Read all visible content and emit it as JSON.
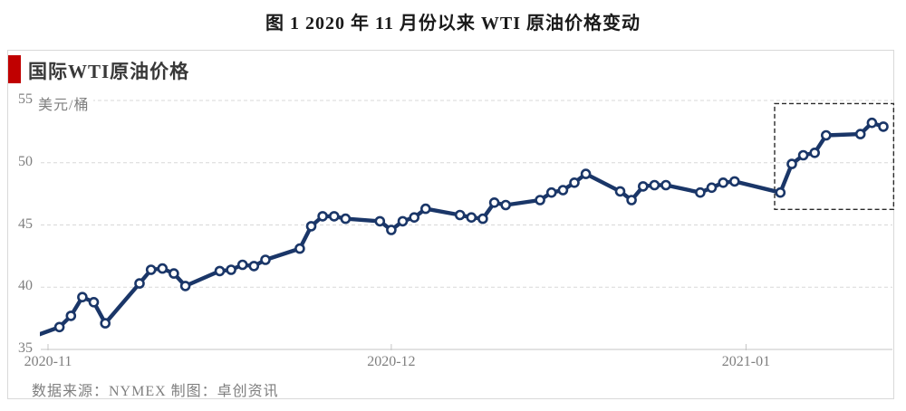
{
  "page_title": "图 1 2020 年 11 月份以来 WTI 原油价格变动",
  "panel": {
    "legend_title": "国际WTI原油价格",
    "accent_color": "#c00000",
    "source_note": "数据来源：NYMEX 制图：卓创资讯"
  },
  "chart_data": {
    "type": "line",
    "title": "国际WTI原油价格",
    "unit_label": "美元/桶",
    "ylim": [
      35,
      55
    ],
    "yticks": [
      35,
      40,
      45,
      50,
      55
    ],
    "grid": "horizontal-dashed",
    "legend_position": "none",
    "line_color": "#1a3668",
    "marker": "open-circle-white-fill",
    "x_axis": {
      "unit": "calendar-day-offset-from-2020-11-01",
      "ticks": [
        {
          "label": "2020-11",
          "day": 0
        },
        {
          "label": "2020-12",
          "day": 30
        },
        {
          "label": "2021-01",
          "day": 61
        }
      ]
    },
    "points": [
      [
        -2,
        35.8
      ],
      [
        1,
        36.8
      ],
      [
        2,
        37.7
      ],
      [
        3,
        39.2
      ],
      [
        4,
        38.8
      ],
      [
        5,
        37.1
      ],
      [
        8,
        40.3
      ],
      [
        9,
        41.4
      ],
      [
        10,
        41.5
      ],
      [
        11,
        41.1
      ],
      [
        12,
        40.1
      ],
      [
        15,
        41.3
      ],
      [
        16,
        41.4
      ],
      [
        17,
        41.8
      ],
      [
        18,
        41.7
      ],
      [
        19,
        42.2
      ],
      [
        22,
        43.1
      ],
      [
        23,
        44.9
      ],
      [
        24,
        45.7
      ],
      [
        25,
        45.7
      ],
      [
        26,
        45.5
      ],
      [
        29,
        45.3
      ],
      [
        30,
        44.6
      ],
      [
        31,
        45.3
      ],
      [
        32,
        45.6
      ],
      [
        33,
        46.3
      ],
      [
        36,
        45.8
      ],
      [
        37,
        45.6
      ],
      [
        38,
        45.5
      ],
      [
        39,
        46.8
      ],
      [
        40,
        46.6
      ],
      [
        43,
        47.0
      ],
      [
        44,
        47.6
      ],
      [
        45,
        47.8
      ],
      [
        46,
        48.4
      ],
      [
        47,
        49.1
      ],
      [
        50,
        47.7
      ],
      [
        51,
        47.0
      ],
      [
        52,
        48.1
      ],
      [
        53,
        48.2
      ],
      [
        54,
        48.2
      ],
      [
        57,
        47.6
      ],
      [
        58,
        48.0
      ],
      [
        59,
        48.4
      ],
      [
        60,
        48.5
      ],
      [
        64,
        47.6
      ],
      [
        65,
        49.9
      ],
      [
        66,
        50.6
      ],
      [
        67,
        50.8
      ],
      [
        68,
        52.2
      ],
      [
        71,
        52.3
      ],
      [
        72,
        53.2
      ],
      [
        73,
        52.9
      ]
    ],
    "highlight_box": {
      "day_from": 63.5,
      "day_to": 73.9,
      "value_from": 46.25,
      "value_to": 54.75,
      "style": "black-dashed"
    }
  }
}
